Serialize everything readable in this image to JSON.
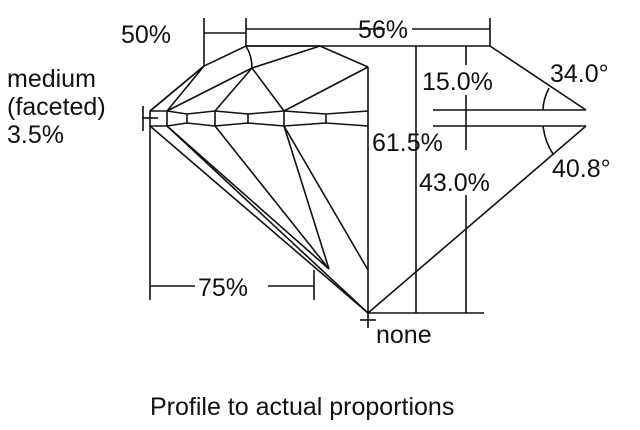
{
  "labels": {
    "table_width": "56%",
    "star_length": "50%",
    "girdle": "medium\n(faceted)\n3.5%",
    "girdle_line1": "medium",
    "girdle_line2": "(faceted)",
    "girdle_line3": "3.5%",
    "crown_height": "15.0%",
    "total_depth": "61.5%",
    "pavilion_depth": "43.0%",
    "crown_angle": "34.0°",
    "pavilion_angle": "40.8°",
    "lower_half": "75%",
    "culet": "none"
  },
  "caption": "Profile to actual proportions",
  "colors": {
    "line": "#111111",
    "background": "#ffffff"
  }
}
